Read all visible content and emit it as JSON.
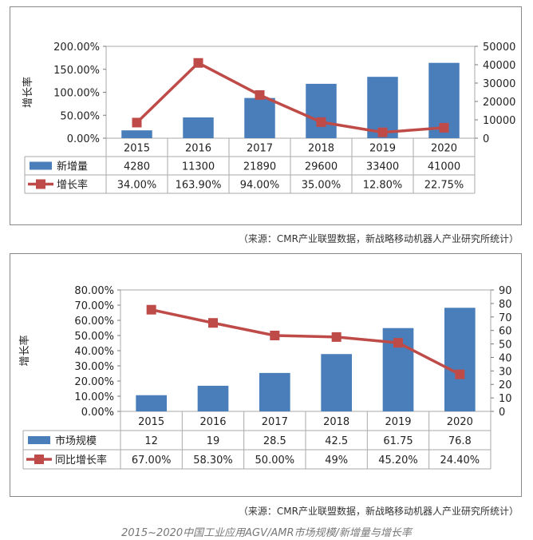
{
  "charts": [
    {
      "type": "bar",
      "categories": [
        "2015",
        "2016",
        "2017",
        "2018",
        "2019",
        "2020"
      ],
      "series": [
        {
          "name": "新增量",
          "chart_type": "bar",
          "axis": "right",
          "color": "#4A7EBB",
          "values": [
            4280,
            11300,
            21890,
            29600,
            33400,
            41000
          ],
          "labels": [
            "4280",
            "11300",
            "21890",
            "29600",
            "33400",
            "41000"
          ]
        },
        {
          "name": "增长率",
          "chart_type": "line",
          "axis": "left",
          "color": "#BE4B48",
          "values": [
            34.0,
            163.9,
            94.0,
            35.0,
            12.8,
            22.75
          ],
          "labels": [
            "34.00%",
            "163.90%",
            "94.00%",
            "35.00%",
            "12.80%",
            "22.75%"
          ]
        }
      ],
      "ylabel": "增长率",
      "y_left_ticks": [
        "0.00%",
        "50.00%",
        "100.00%",
        "150.00%",
        "200.00%"
      ],
      "y_left_range": [
        0,
        200
      ],
      "y_right_ticks": [
        "0",
        "10000",
        "20000",
        "30000",
        "40000",
        "50000"
      ],
      "y_right_range": [
        0,
        50000
      ],
      "grid": false,
      "legend": "data-table"
    },
    {
      "type": "bar",
      "categories": [
        "2015",
        "2016",
        "2017",
        "2018",
        "2019",
        "2020"
      ],
      "series": [
        {
          "name": "市场规模",
          "chart_type": "bar",
          "axis": "right",
          "color": "#4A7EBB",
          "values": [
            12,
            19,
            28.5,
            42.5,
            61.75,
            76.8
          ],
          "labels": [
            "12",
            "19",
            "28.5",
            "42.5",
            "61.75",
            "76.8"
          ]
        },
        {
          "name": "同比增长率",
          "chart_type": "line",
          "axis": "left",
          "color": "#BE4B48",
          "values": [
            67.0,
            58.3,
            50.0,
            49.0,
            45.2,
            24.4
          ],
          "labels": [
            "67.00%",
            "58.30%",
            "50.00%",
            "49%",
            "45.20%",
            "24.40%"
          ]
        }
      ],
      "ylabel": "增长率",
      "y_left_ticks": [
        "0.00%",
        "10.00%",
        "20.00%",
        "30.00%",
        "40.00%",
        "50.00%",
        "60.00%",
        "70.00%",
        "80.00%"
      ],
      "y_left_range": [
        0,
        80
      ],
      "y_right_ticks": [
        "0",
        "10",
        "20",
        "30",
        "40",
        "50",
        "60",
        "70",
        "80",
        "90"
      ],
      "y_right_range": [
        0,
        90
      ],
      "grid": false,
      "legend": "data-table"
    }
  ],
  "source1": "（来源：CMR产业联盟数据，新战略移动机器人产业研究所统计）",
  "source2": "（来源：CMR产业联盟数据，新战略移动机器人产业研究所统计）",
  "caption": "2015~2020中国工业应用AGV/AMR市场规模/新增量与增长率",
  "chart_data": [
    {
      "type": "bar",
      "categories": [
        "2015",
        "2016",
        "2017",
        "2018",
        "2019",
        "2020"
      ],
      "series": [
        {
          "name": "新增量",
          "values": [
            4280,
            11300,
            21890,
            29600,
            33400,
            41000
          ]
        },
        {
          "name": "增长率",
          "values": [
            34.0,
            163.9,
            94.0,
            35.0,
            12.8,
            22.75
          ]
        }
      ],
      "ylabel": "增长率"
    },
    {
      "type": "bar",
      "categories": [
        "2015",
        "2016",
        "2017",
        "2018",
        "2019",
        "2020"
      ],
      "series": [
        {
          "name": "市场规模",
          "values": [
            12,
            19,
            28.5,
            42.5,
            61.75,
            76.8
          ]
        },
        {
          "name": "同比增长率",
          "values": [
            67.0,
            58.3,
            50.0,
            49.0,
            45.2,
            24.4
          ]
        }
      ],
      "ylabel": "增长率"
    }
  ]
}
